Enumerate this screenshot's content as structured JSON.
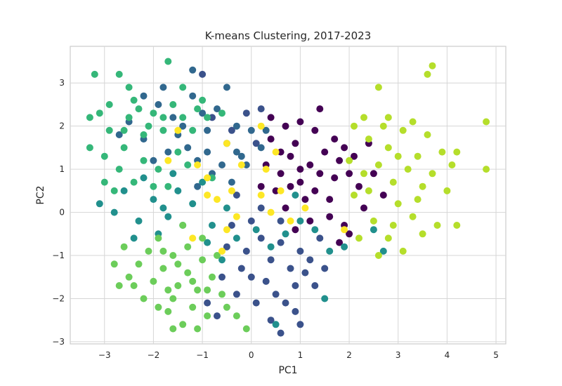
{
  "chart_data": {
    "type": "scatter",
    "title": "K-means Clustering, 2017-2023",
    "xlabel": "PC1",
    "ylabel": "PC2",
    "xlim": [
      -3.7,
      5.2
    ],
    "ylim": [
      -3.05,
      3.85
    ],
    "grid": true,
    "legend": "none",
    "x_ticks": [
      -3,
      -2,
      -1,
      0,
      1,
      2,
      3,
      4,
      5
    ],
    "y_ticks": [
      -3,
      -2,
      -1,
      0,
      1,
      2,
      3
    ],
    "x_tick_labels": [
      "−3",
      "−2",
      "−1",
      "0",
      "1",
      "2",
      "3",
      "4",
      "5"
    ],
    "y_tick_labels": [
      "−3",
      "−2",
      "−1",
      "0",
      "1",
      "2",
      "3"
    ],
    "series": [
      {
        "color": "#440154",
        "points": [
          [
            0.3,
            1.1
          ],
          [
            0.6,
            0.9
          ],
          [
            0.8,
            1.3
          ],
          [
            1.0,
            0.7
          ],
          [
            1.2,
            1.1
          ],
          [
            0.5,
            0.5
          ],
          [
            0.9,
            1.6
          ],
          [
            1.4,
            0.9
          ],
          [
            1.1,
            0.3
          ],
          [
            0.7,
            0.1
          ],
          [
            1.5,
            1.4
          ],
          [
            1.3,
            1.9
          ],
          [
            0.4,
            1.7
          ],
          [
            0.2,
            0.6
          ],
          [
            1.7,
            0.8
          ],
          [
            1.6,
            0.3
          ],
          [
            1.8,
            1.2
          ],
          [
            2.0,
            0.9
          ],
          [
            1.9,
            1.5
          ],
          [
            2.2,
            0.6
          ],
          [
            2.3,
            0.1
          ],
          [
            1.4,
            2.4
          ],
          [
            0.7,
            2.0
          ],
          [
            1.0,
            2.1
          ],
          [
            2.5,
            0.9
          ],
          [
            2.7,
            0.4
          ],
          [
            1.9,
            -0.3
          ],
          [
            1.8,
            -0.7
          ],
          [
            2.0,
            -0.5
          ],
          [
            1.6,
            -0.1
          ],
          [
            1.2,
            -0.2
          ],
          [
            0.9,
            -0.4
          ],
          [
            0.6,
            1.4
          ],
          [
            0.4,
            2.2
          ],
          [
            1.3,
            0.5
          ],
          [
            1.7,
            1.7
          ],
          [
            2.1,
            1.3
          ],
          [
            2.4,
            1.6
          ],
          [
            1.0,
            1.0
          ],
          [
            0.8,
            0.6
          ]
        ]
      },
      {
        "color": "#3b528b",
        "points": [
          [
            -0.3,
            0.4
          ],
          [
            0.0,
            -0.2
          ],
          [
            0.2,
            -0.6
          ],
          [
            -0.1,
            -0.9
          ],
          [
            0.4,
            -1.1
          ],
          [
            0.6,
            -0.7
          ],
          [
            0.8,
            -1.3
          ],
          [
            1.0,
            -0.9
          ],
          [
            0.3,
            -1.6
          ],
          [
            0.5,
            -1.9
          ],
          [
            0.9,
            -1.7
          ],
          [
            1.1,
            -1.4
          ],
          [
            -0.2,
            -1.3
          ],
          [
            -0.5,
            -0.8
          ],
          [
            -0.6,
            -1.5
          ],
          [
            -0.3,
            -1.9
          ],
          [
            0.1,
            -2.1
          ],
          [
            0.7,
            -2.1
          ],
          [
            1.2,
            -1.1
          ],
          [
            1.4,
            -0.6
          ],
          [
            1.3,
            -1.7
          ],
          [
            0.2,
            0.1
          ],
          [
            -0.4,
            -0.3
          ],
          [
            0.0,
            -1.5
          ],
          [
            0.6,
            -0.2
          ],
          [
            -0.1,
            2.3
          ],
          [
            -0.4,
            1.9
          ],
          [
            0.1,
            1.6
          ],
          [
            -0.8,
            2.2
          ],
          [
            0.2,
            2.4
          ],
          [
            -1.0,
            3.2
          ],
          [
            -0.7,
            -2.4
          ],
          [
            1.5,
            -1.3
          ],
          [
            0.9,
            -2.3
          ],
          [
            0.4,
            -2.5
          ],
          [
            -0.9,
            -2.1
          ],
          [
            1.0,
            -2.6
          ],
          [
            0.6,
            -2.8
          ]
        ]
      },
      {
        "color": "#21908d",
        "points": [
          [
            -2.0,
            0.3
          ],
          [
            -1.7,
            -0.1
          ],
          [
            -1.5,
            0.5
          ],
          [
            -2.3,
            -0.2
          ],
          [
            -2.6,
            0.5
          ],
          [
            -1.9,
            -0.5
          ],
          [
            -1.2,
            0.2
          ],
          [
            -1.0,
            0.7
          ],
          [
            -0.8,
            -0.3
          ],
          [
            -0.5,
            0.1
          ],
          [
            -0.3,
            -0.6
          ],
          [
            0.1,
            -0.4
          ],
          [
            0.4,
            -0.8
          ],
          [
            0.7,
            -0.5
          ],
          [
            1.0,
            -0.2
          ],
          [
            1.3,
            -0.4
          ],
          [
            1.6,
            -0.9
          ],
          [
            -2.8,
            0.0
          ],
          [
            -2.4,
            -0.6
          ],
          [
            -1.6,
            0.9
          ],
          [
            -0.9,
            -0.7
          ],
          [
            -0.6,
            -1.1
          ],
          [
            0.9,
            0.4
          ],
          [
            1.9,
            -0.8
          ],
          [
            2.5,
            -0.4
          ],
          [
            -1.4,
            -0.3
          ],
          [
            -2.2,
            0.8
          ],
          [
            1.5,
            -2.0
          ],
          [
            0.5,
            -2.6
          ],
          [
            -3.1,
            0.2
          ],
          [
            2.7,
            -0.9
          ],
          [
            -1.8,
            0.1
          ]
        ]
      },
      {
        "color": "#31688e",
        "points": [
          [
            -1.3,
            1.5
          ],
          [
            -0.9,
            1.9
          ],
          [
            -0.5,
            1.6
          ],
          [
            -0.2,
            1.3
          ],
          [
            -0.6,
            1.1
          ],
          [
            -1.1,
            1.2
          ],
          [
            -0.8,
            0.9
          ],
          [
            -0.4,
            0.7
          ],
          [
            -1.5,
            1.8
          ],
          [
            -1.7,
            1.4
          ],
          [
            -0.3,
            2.0
          ],
          [
            0.0,
            1.9
          ],
          [
            -1.0,
            2.3
          ],
          [
            -1.4,
            2.0
          ],
          [
            -0.7,
            2.4
          ],
          [
            -1.9,
            2.5
          ],
          [
            -1.2,
            2.7
          ],
          [
            -0.1,
            1.1
          ],
          [
            0.2,
            1.5
          ],
          [
            -2.2,
            1.7
          ],
          [
            -2.5,
            2.1
          ],
          [
            -1.2,
            3.3
          ],
          [
            -0.5,
            2.9
          ],
          [
            -1.6,
            2.2
          ],
          [
            -2.0,
            1.2
          ],
          [
            -0.9,
            1.4
          ],
          [
            -0.3,
            1.4
          ],
          [
            -1.1,
            0.6
          ],
          [
            0.3,
            1.9
          ],
          [
            -1.8,
            2.9
          ],
          [
            -2.2,
            2.7
          ],
          [
            -2.7,
            1.8
          ]
        ]
      },
      {
        "color": "#35b779",
        "points": [
          [
            -2.9,
            2.5
          ],
          [
            -2.5,
            2.2
          ],
          [
            -2.2,
            1.8
          ],
          [
            -2.6,
            1.5
          ],
          [
            -2.9,
            1.9
          ],
          [
            -3.1,
            2.3
          ],
          [
            -2.4,
            2.6
          ],
          [
            -2.0,
            2.3
          ],
          [
            -1.8,
            1.9
          ],
          [
            -1.6,
            2.5
          ],
          [
            -2.2,
            1.2
          ],
          [
            -2.7,
            1.0
          ],
          [
            -3.0,
            1.3
          ],
          [
            -1.9,
            1.0
          ],
          [
            -1.5,
            1.4
          ],
          [
            -1.2,
            1.9
          ],
          [
            -0.9,
            2.2
          ],
          [
            -1.3,
            1.1
          ],
          [
            -1.7,
            0.6
          ],
          [
            -2.4,
            0.7
          ],
          [
            -3.3,
            1.5
          ],
          [
            -3.2,
            3.2
          ],
          [
            -2.7,
            3.2
          ],
          [
            -1.7,
            3.5
          ],
          [
            -1.0,
            2.6
          ],
          [
            -2.5,
            2.9
          ],
          [
            -1.4,
            2.9
          ],
          [
            -0.6,
            2.3
          ],
          [
            -2.1,
            2.0
          ],
          [
            -2.8,
            0.5
          ],
          [
            -1.8,
            2.2
          ],
          [
            -2.3,
            2.4
          ],
          [
            -1.4,
            2.2
          ],
          [
            -3.0,
            0.7
          ],
          [
            -2.0,
            0.6
          ],
          [
            -1.1,
            2.4
          ],
          [
            -0.8,
            0.8
          ],
          [
            -2.6,
            1.9
          ],
          [
            -3.3,
            2.2
          ]
        ]
      },
      {
        "color": "#6ccd5a",
        "points": [
          [
            -1.9,
            -0.6
          ],
          [
            -1.6,
            -1.0
          ],
          [
            -1.3,
            -1.4
          ],
          [
            -1.1,
            -1.8
          ],
          [
            -1.5,
            -1.7
          ],
          [
            -1.8,
            -1.3
          ],
          [
            -2.1,
            -0.9
          ],
          [
            -1.0,
            -1.1
          ],
          [
            -0.8,
            -1.5
          ],
          [
            -0.6,
            -1.9
          ],
          [
            -1.2,
            -2.2
          ],
          [
            -1.6,
            -2.0
          ],
          [
            -2.0,
            -1.6
          ],
          [
            -0.9,
            -2.4
          ],
          [
            -1.4,
            -2.6
          ],
          [
            -1.7,
            -2.3
          ],
          [
            -2.3,
            -1.2
          ],
          [
            -2.6,
            -0.8
          ],
          [
            -2.4,
            -1.7
          ],
          [
            -2.2,
            -2.0
          ],
          [
            -1.9,
            -2.2
          ],
          [
            -1.0,
            -0.6
          ],
          [
            -0.7,
            -1.0
          ],
          [
            -1.4,
            -0.3
          ],
          [
            -2.8,
            -1.2
          ],
          [
            -1.1,
            -2.7
          ],
          [
            -1.6,
            -2.7
          ],
          [
            -0.3,
            -2.4
          ],
          [
            -1.5,
            -1.2
          ],
          [
            -1.2,
            -1.6
          ],
          [
            -0.9,
            -1.8
          ],
          [
            -1.8,
            -0.9
          ],
          [
            -2.5,
            -1.5
          ],
          [
            -0.1,
            -2.7
          ],
          [
            -2.7,
            -1.7
          ],
          [
            -1.3,
            -0.8
          ],
          [
            -1.7,
            -1.8
          ],
          [
            -0.5,
            -2.2
          ]
        ]
      },
      {
        "color": "#b5de2b",
        "points": [
          [
            2.1,
            0.4
          ],
          [
            2.3,
            0.9
          ],
          [
            2.6,
            1.1
          ],
          [
            2.9,
            0.7
          ],
          [
            3.2,
            1.0
          ],
          [
            3.5,
            0.6
          ],
          [
            2.8,
            1.5
          ],
          [
            3.1,
            1.9
          ],
          [
            3.4,
            1.3
          ],
          [
            2.4,
            1.7
          ],
          [
            2.0,
            1.2
          ],
          [
            2.7,
            2.0
          ],
          [
            3.7,
            0.9
          ],
          [
            3.9,
            1.4
          ],
          [
            4.2,
            1.4
          ],
          [
            3.6,
            1.8
          ],
          [
            3.0,
            0.2
          ],
          [
            3.3,
            -0.1
          ],
          [
            2.5,
            -0.2
          ],
          [
            2.2,
            -0.6
          ],
          [
            2.8,
            -0.6
          ],
          [
            3.1,
            -0.9
          ],
          [
            2.6,
            -1.0
          ],
          [
            3.5,
            -0.5
          ],
          [
            3.8,
            -0.3
          ],
          [
            4.0,
            0.5
          ],
          [
            4.1,
            1.1
          ],
          [
            3.3,
            2.1
          ],
          [
            2.6,
            2.9
          ],
          [
            3.6,
            3.2
          ],
          [
            3.7,
            3.4
          ],
          [
            2.3,
            2.2
          ],
          [
            2.8,
            2.2
          ],
          [
            4.8,
            1.0
          ],
          [
            4.8,
            2.1
          ],
          [
            4.2,
            -0.3
          ],
          [
            3.0,
            1.3
          ],
          [
            2.9,
            -0.3
          ],
          [
            2.1,
            2.0
          ],
          [
            3.4,
            0.3
          ],
          [
            2.4,
            0.5
          ]
        ]
      },
      {
        "color": "#fde725",
        "points": [
          [
            -0.5,
            1.6
          ],
          [
            -0.2,
            1.1
          ],
          [
            0.3,
            1.0
          ],
          [
            0.2,
            0.4
          ],
          [
            -0.4,
            0.5
          ],
          [
            -0.9,
            0.8
          ],
          [
            -1.1,
            1.1
          ],
          [
            -0.7,
            0.3
          ],
          [
            0.4,
            0.0
          ],
          [
            0.6,
            0.5
          ],
          [
            1.1,
            0.1
          ],
          [
            0.8,
            -0.2
          ],
          [
            -0.3,
            -0.1
          ],
          [
            -1.5,
            1.9
          ],
          [
            -1.7,
            1.2
          ],
          [
            -0.9,
            0.4
          ],
          [
            1.9,
            -0.4
          ],
          [
            -1.2,
            -0.6
          ],
          [
            -0.5,
            -0.4
          ],
          [
            0.5,
            1.4
          ],
          [
            -0.6,
            -0.9
          ],
          [
            0.2,
            2.0
          ]
        ]
      }
    ]
  }
}
